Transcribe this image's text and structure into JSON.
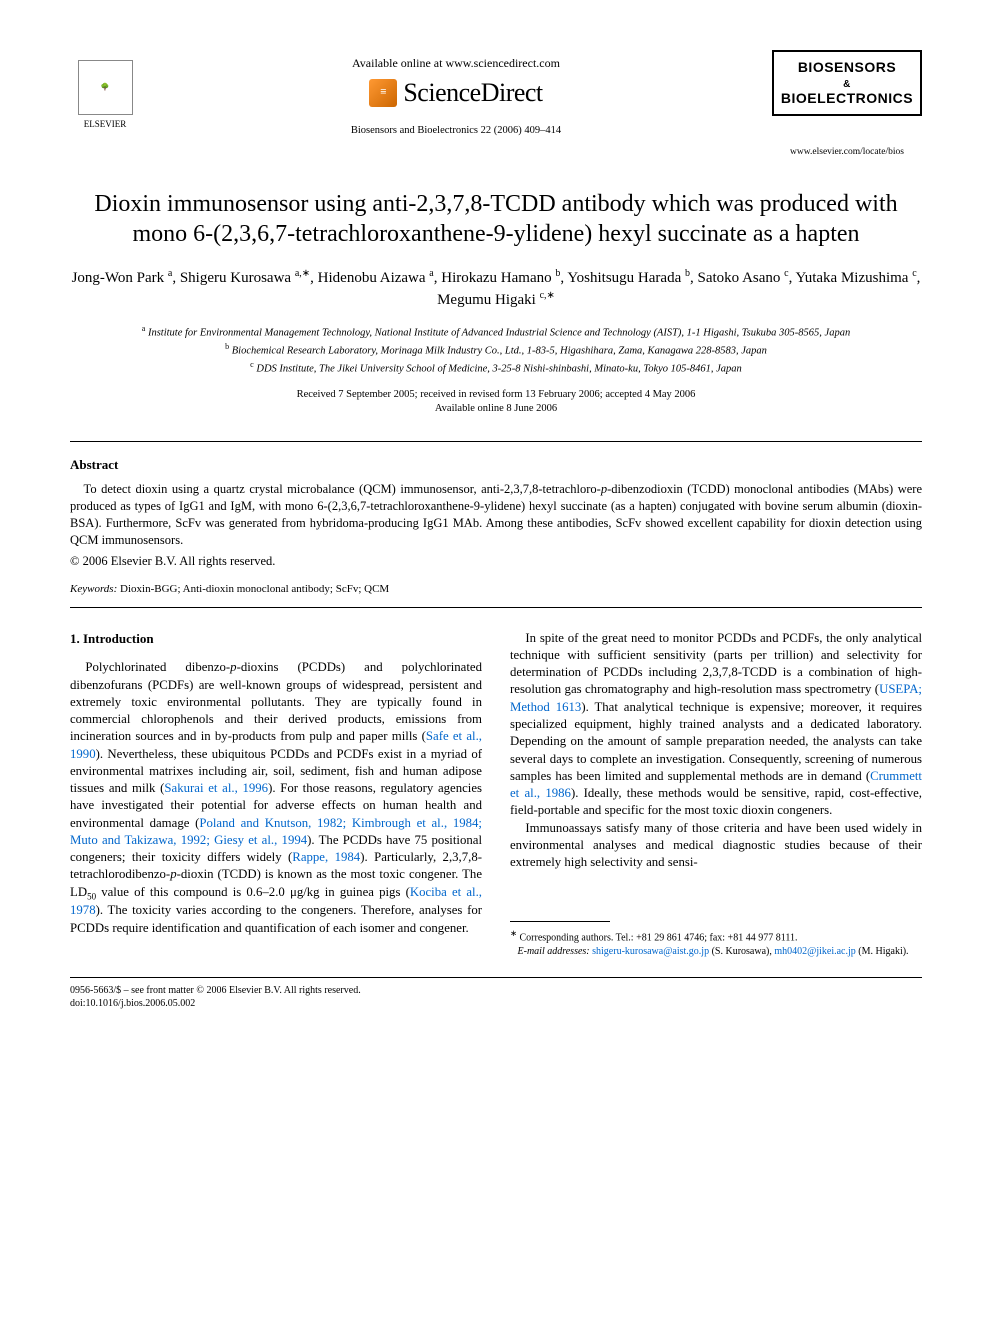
{
  "header": {
    "available_online": "Available online at www.sciencedirect.com",
    "sciencedirect_label": "ScienceDirect",
    "journal_ref": "Biosensors and Bioelectronics 22 (2006) 409–414",
    "elsevier_label": "ELSEVIER",
    "journal_logo_line1": "BIOSENSORS",
    "journal_logo_amp": "&",
    "journal_logo_line2": "BIOELECTRONICS",
    "journal_url": "www.elsevier.com/locate/bios"
  },
  "title": "Dioxin immunosensor using anti-2,3,7,8-TCDD antibody which was produced with mono 6-(2,3,6,7-tetrachloroxanthene-9-ylidene) hexyl succinate as a hapten",
  "authors_html": "Jong-Won Park <sup>a</sup>, Shigeru Kurosawa <sup>a,∗</sup>, Hidenobu Aizawa <sup>a</sup>, Hirokazu Hamano <sup>b</sup>, Yoshitsugu Harada <sup>b</sup>, Satoko Asano <sup>c</sup>, Yutaka Mizushima <sup>c</sup>, Megumu Higaki <sup>c,∗</sup>",
  "affiliations": {
    "a": "Institute for Environmental Management Technology, National Institute of Advanced Industrial Science and Technology (AIST), 1-1 Higashi, Tsukuba 305-8565, Japan",
    "b": "Biochemical Research Laboratory, Morinaga Milk Industry Co., Ltd., 1-83-5, Higashihara, Zama, Kanagawa 228-8583, Japan",
    "c": "DDS Institute, The Jikei University School of Medicine, 3-25-8 Nishi-shinbashi, Minato-ku, Tokyo 105-8461, Japan"
  },
  "dates": {
    "received": "Received 7 September 2005; received in revised form 13 February 2006; accepted 4 May 2006",
    "online": "Available online 8 June 2006"
  },
  "abstract": {
    "heading": "Abstract",
    "text": "To detect dioxin using a quartz crystal microbalance (QCM) immunosensor, anti-2,3,7,8-tetrachloro-p-dibenzodioxin (TCDD) monoclonal antibodies (MAbs) were produced as types of IgG1 and IgM, with mono 6-(2,3,6,7-tetrachloroxanthene-9-ylidene) hexyl succinate (as a hapten) conjugated with bovine serum albumin (dioxin-BSA). Furthermore, ScFv was generated from hybridoma-producing IgG1 MAb. Among these antibodies, ScFv showed excellent capability for dioxin detection using QCM immunosensors.",
    "copyright": "© 2006 Elsevier B.V. All rights reserved."
  },
  "keywords": {
    "label": "Keywords:",
    "text": " Dioxin-BGG; Anti-dioxin monoclonal antibody; ScFv; QCM"
  },
  "section1": {
    "heading": "1.  Introduction",
    "para1_pre": "Polychlorinated dibenzo-",
    "para1_mid1": "-dioxins (PCDDs) and polychlorinated dibenzofurans (PCDFs) are well-known groups of widespread, persistent and extremely toxic environmental pollutants. They are typically found in commercial chlorophenols and their derived products, emissions from incineration sources and in by-products from pulp and paper mills (",
    "ref1": "Safe et al., 1990",
    "para1_mid2": "). Nevertheless, these ubiquitous PCDDs and PCDFs exist in a myriad of environmental matrixes including air, soil, sediment, fish and human adipose tissues and milk (",
    "ref2": "Sakurai et al., 1996",
    "para1_mid3": "). For those reasons, regulatory agencies have investigated their potential for adverse effects on human health and environmental damage (",
    "ref3": "Poland and Knutson, 1982; Kimbrough et al., 1984; Muto and Takizawa, 1992; Giesy et al., 1994",
    "para1_mid4": "). The PCDDs have 75 positional congeners; their toxicity differs widely (",
    "ref4": "Rappe, 1984",
    "para1_end": "). Particularly, 2,3,7,8-tetrachlorodibenzo-",
    "para1b_pre": "-dioxin (TCDD) is known as the most toxic congener. The LD",
    "para1b_mid1": " value of this compound is 0.6–2.0 μg/kg in guinea pigs (",
    "ref5": "Kociba et al., 1978",
    "para1b_end": "). The toxicity varies according to the congeners. Therefore, analyses for PCDDs require identification and quantification of each isomer and congener.",
    "para2_pre": "In spite of the great need to monitor PCDDs and PCDFs, the only analytical technique with sufficient sensitivity (parts per trillion) and selectivity for determination of PCDDs including 2,3,7,8-TCDD is a combination of high-resolution gas chromatography and high-resolution mass spectrometry (",
    "ref6": "USEPA; Method 1613",
    "para2_mid": "). That analytical technique is expensive; moreover, it requires specialized equipment, highly trained analysts and a dedicated laboratory. Depending on the amount of sample preparation needed, the analysts can take several days to complete an investigation. Consequently, screening of numerous samples has been limited and supplemental methods are in demand (",
    "ref7": "Crummett et al., 1986",
    "para2_end": "). Ideally, these methods would be sensitive, rapid, cost-effective, field-portable and specific for the most toxic dioxin congeners.",
    "para3": "Immunoassays satisfy many of those criteria and have been used widely in environmental analyses and medical diagnostic studies because of their extremely high selectivity and sensi-"
  },
  "footnotes": {
    "corr": "Corresponding authors. Tel.: +81 29 861 4746; fax: +81 44 977 8111.",
    "email_label": "E-mail addresses:",
    "email1": "shigeru-kurosawa@aist.go.jp",
    "email1_who": " (S. Kurosawa),",
    "email2": "mh0402@jikei.ac.jp",
    "email2_who": " (M. Higaki)."
  },
  "footer": {
    "line1": "0956-5663/$ – see front matter © 2006 Elsevier B.V. All rights reserved.",
    "line2": "doi:10.1016/j.bios.2006.05.002"
  },
  "colors": {
    "link": "#0066cc",
    "text": "#000000",
    "bg": "#ffffff"
  }
}
